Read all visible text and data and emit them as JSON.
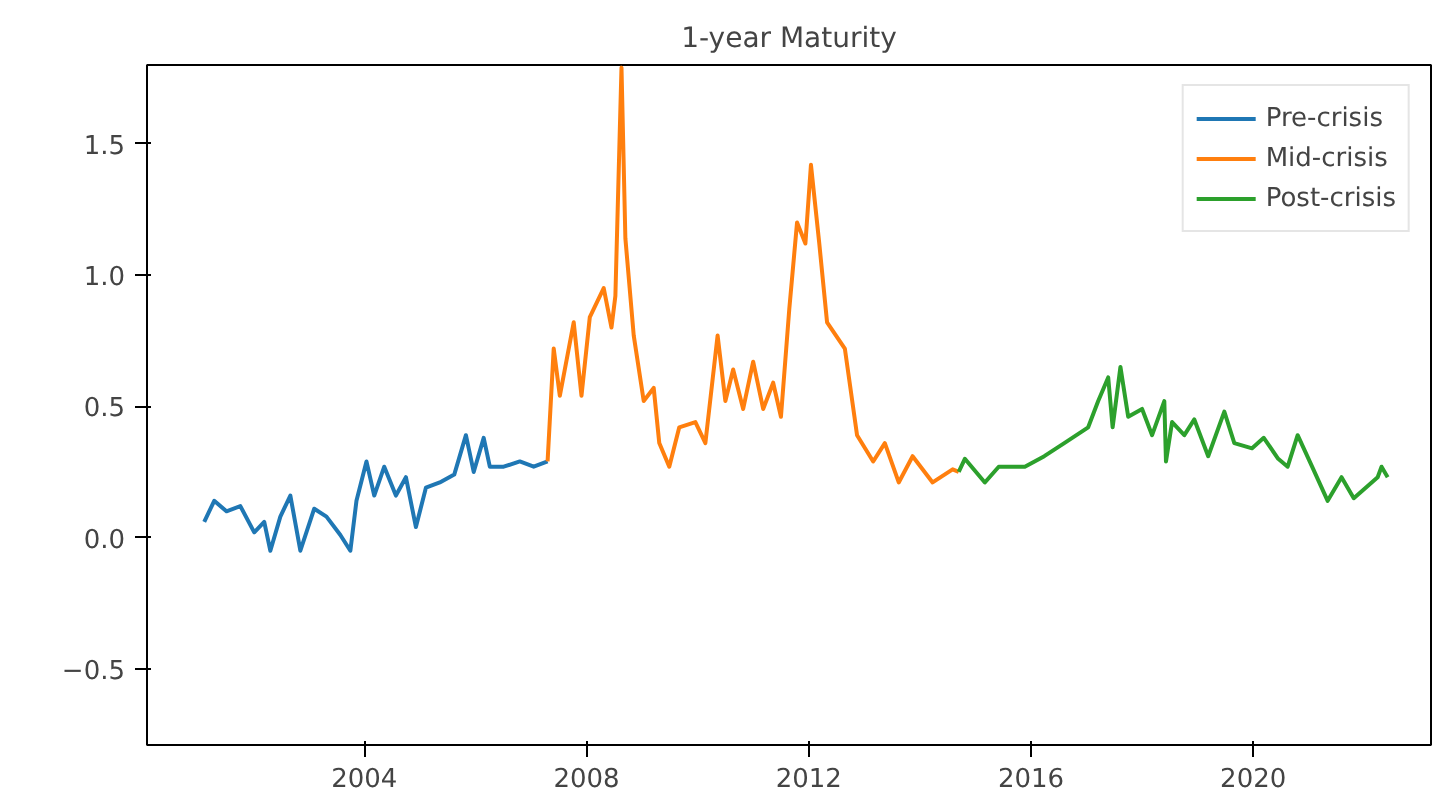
{
  "chart_data": {
    "type": "line",
    "title": "1-year Maturity",
    "xlim": [
      2000.09,
      2023.2
    ],
    "ylim": [
      -0.79,
      1.8
    ],
    "xticks": [
      2004,
      2008,
      2012,
      2016,
      2020
    ],
    "yticks": [
      {
        "value": -0.5,
        "label": "−0.5"
      },
      {
        "value": 0,
        "label": "0.0"
      },
      0.5,
      {
        "value": 1,
        "label": "1.0"
      },
      1.5
    ],
    "grid": false,
    "legend": "top right",
    "series": [
      {
        "name": "Pre-crisis",
        "color": "#1f77b4",
        "x": [
          2001.12,
          2001.3,
          2001.52,
          2001.77,
          2002.02,
          2002.2,
          2002.31,
          2002.49,
          2002.67,
          2002.85,
          2003.1,
          2003.32,
          2003.57,
          2003.75,
          2003.86,
          2004.04,
          2004.18,
          2004.36,
          2004.57,
          2004.75,
          2004.93,
          2005.11,
          2005.36,
          2005.62,
          2005.83,
          2005.97,
          2006.15,
          2006.26,
          2006.51,
          2006.8,
          2007.05,
          2007.3
        ],
        "values": [
          0.06,
          0.14,
          0.1,
          0.12,
          0.02,
          0.06,
          -0.05,
          0.08,
          0.16,
          -0.05,
          0.11,
          0.08,
          0.01,
          -0.05,
          0.14,
          0.29,
          0.16,
          0.27,
          0.16,
          0.23,
          0.04,
          0.19,
          0.21,
          0.24,
          0.39,
          0.25,
          0.38,
          0.27,
          0.27,
          0.29,
          0.27,
          0.29
        ]
      },
      {
        "name": "Mid-crisis",
        "color": "#ff7f0e",
        "x": [
          2007.3,
          2007.41,
          2007.52,
          2007.77,
          2007.91,
          2008.06,
          2008.31,
          2008.45,
          2008.52,
          2008.63,
          2008.7,
          2008.85,
          2009.03,
          2009.21,
          2009.31,
          2009.49,
          2009.67,
          2009.96,
          2010.14,
          2010.36,
          2010.5,
          2010.64,
          2010.82,
          2011.0,
          2011.18,
          2011.36,
          2011.5,
          2011.65,
          2011.79,
          2011.94,
          2012.04,
          2012.19,
          2012.33,
          2012.65,
          2012.87,
          2013.16,
          2013.37,
          2013.62,
          2013.87,
          2014.23,
          2014.59,
          2014.7
        ],
        "values": [
          0.29,
          0.72,
          0.54,
          0.82,
          0.54,
          0.84,
          0.95,
          0.8,
          0.92,
          1.79,
          1.14,
          0.77,
          0.52,
          0.57,
          0.36,
          0.27,
          0.42,
          0.44,
          0.36,
          0.77,
          0.52,
          0.64,
          0.49,
          0.67,
          0.49,
          0.59,
          0.46,
          0.87,
          1.2,
          1.12,
          1.42,
          1.12,
          0.82,
          0.72,
          0.39,
          0.29,
          0.36,
          0.21,
          0.31,
          0.21,
          0.26,
          0.25
        ]
      },
      {
        "name": "Post-crisis",
        "color": "#2ca02c",
        "x": [
          2014.7,
          2014.81,
          2015.17,
          2015.42,
          2015.89,
          2016.24,
          2016.6,
          2017.03,
          2017.21,
          2017.39,
          2017.47,
          2017.61,
          2017.75,
          2018.0,
          2018.18,
          2018.4,
          2018.43,
          2018.54,
          2018.76,
          2018.94,
          2019.19,
          2019.48,
          2019.66,
          2019.98,
          2020.19,
          2020.45,
          2020.62,
          2020.8,
          2021.06,
          2021.34,
          2021.59,
          2021.81,
          2022.24,
          2022.31,
          2022.42
        ],
        "values": [
          0.25,
          0.3,
          0.21,
          0.27,
          0.27,
          0.31,
          0.36,
          0.42,
          0.52,
          0.61,
          0.42,
          0.65,
          0.46,
          0.49,
          0.39,
          0.52,
          0.29,
          0.44,
          0.39,
          0.45,
          0.31,
          0.48,
          0.36,
          0.34,
          0.38,
          0.3,
          0.27,
          0.39,
          0.27,
          0.14,
          0.23,
          0.15,
          0.23,
          0.27,
          0.23
        ]
      }
    ]
  }
}
